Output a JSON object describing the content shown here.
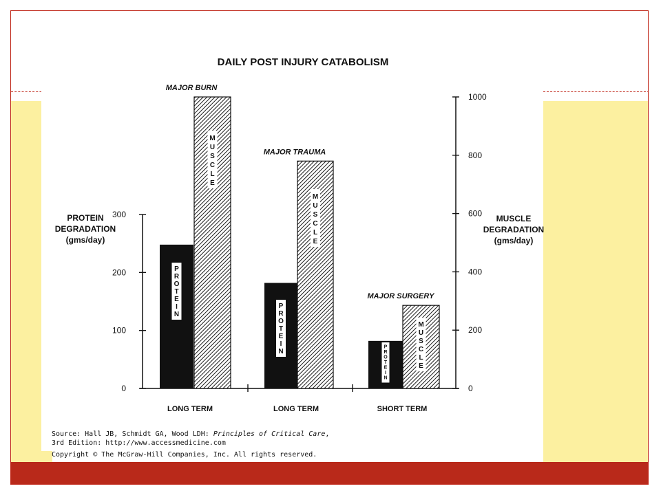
{
  "chart_data": {
    "type": "bar",
    "title": "DAILY POST INJURY CATABOLISM",
    "groups": [
      {
        "label": "MAJOR BURN",
        "category": "LONG TERM",
        "protein": 248,
        "muscle": 1000
      },
      {
        "label": "MAJOR TRAUMA",
        "category": "LONG TERM",
        "protein": 182,
        "muscle": 780
      },
      {
        "label": "MAJOR SURGERY",
        "category": "SHORT TERM",
        "protein": 82,
        "muscle": 285
      }
    ],
    "left_axis": {
      "label_lines": [
        "PROTEIN",
        "DEGRADATION",
        "(gms/day)"
      ],
      "range": [
        0,
        300
      ],
      "ticks": [
        0,
        100,
        200,
        300
      ]
    },
    "right_axis": {
      "label_lines": [
        "MUSCLE",
        "DEGRADATION",
        "(gms/day)"
      ],
      "range": [
        0,
        1000
      ],
      "ticks": [
        0,
        200,
        400,
        600,
        800,
        1000
      ]
    },
    "bar_labels": {
      "protein": "PROTEIN",
      "muscle": "MUSCLE"
    },
    "colors": {
      "protein": "#111111",
      "muscle_hatch": "#1a1a1a"
    }
  },
  "source": {
    "prefix": "Source: Hall JB, Schmidt GA, Wood LDH: ",
    "book_title": "Principles of Critical Care",
    "suffix": ",",
    "line2": "3rd Edition: http://www.accessmedicine.com",
    "copyright": "Copyright © The McGraw-Hill Companies, Inc. All rights reserved."
  },
  "slide": {
    "accent_color": "#b9291a",
    "band_color": "#fcf0a0"
  }
}
